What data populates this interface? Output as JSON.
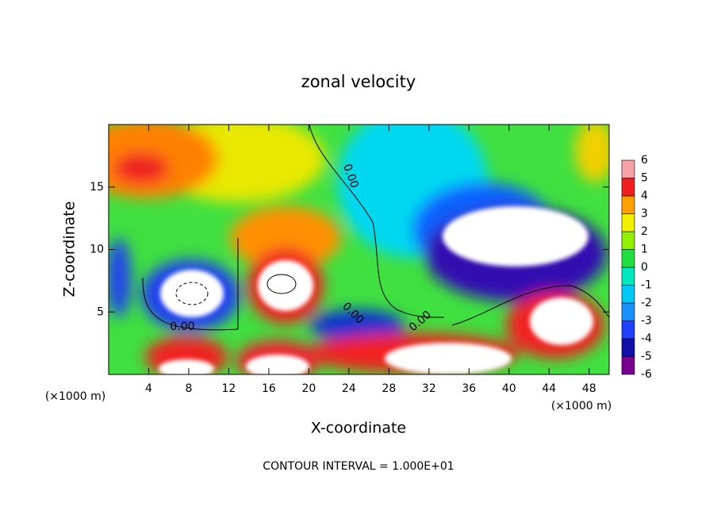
{
  "chart_data": {
    "type": "contour",
    "title": "zonal velocity",
    "xlabel": "X-coordinate",
    "ylabel": "Z-coordinate",
    "xunit": "(×1000 m)",
    "xunit_right": "(×1000 m)",
    "footer": "CONTOUR INTERVAL = 1.000E+01",
    "xlim": [
      0,
      50
    ],
    "ylim": [
      0,
      20
    ],
    "xticks": [
      4,
      8,
      12,
      16,
      20,
      24,
      28,
      32,
      36,
      40,
      44,
      48
    ],
    "yticks": [
      5,
      10,
      15
    ],
    "contour_labels": [
      "0.00",
      "0.00",
      "0.00",
      "0.00"
    ],
    "colorbar": {
      "levels": [
        -6,
        -5,
        -4,
        -3,
        -2,
        -1,
        0,
        1,
        2,
        3,
        4,
        5,
        6
      ],
      "colors": [
        "#7a0090",
        "#1010a8",
        "#2040ff",
        "#1890ff",
        "#00c8f8",
        "#00e8c0",
        "#20e040",
        "#90f000",
        "#f0f000",
        "#ffa000",
        "#f02020",
        "#f8a0a8"
      ]
    }
  }
}
